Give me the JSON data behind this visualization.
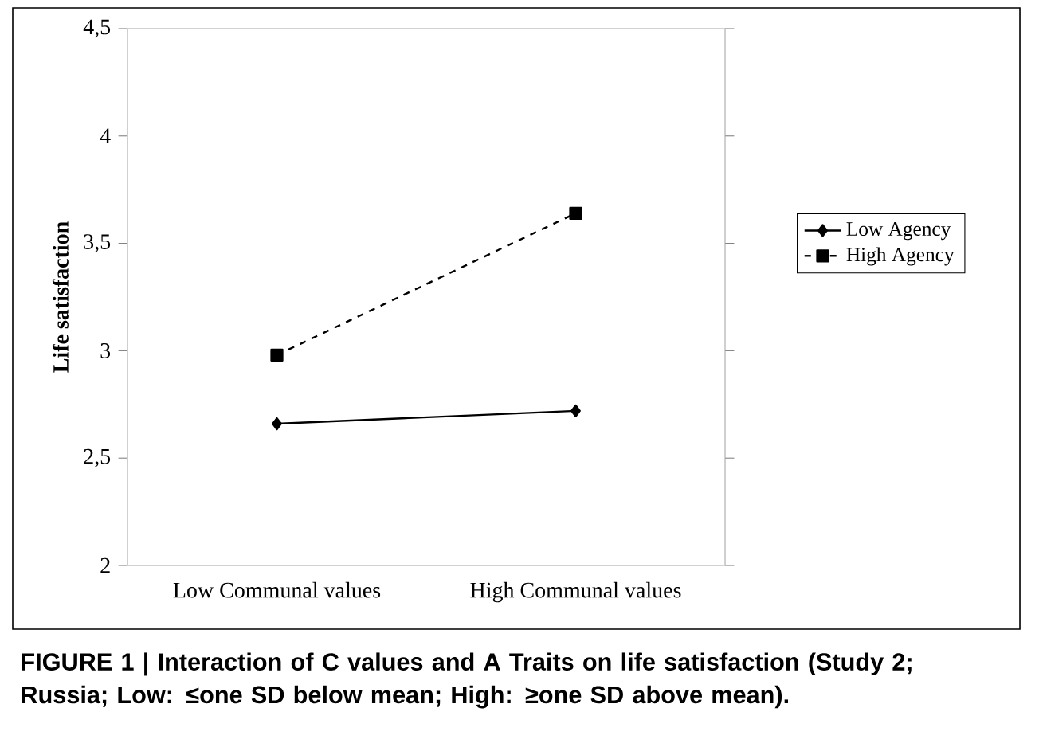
{
  "chart_data": {
    "type": "line",
    "ylabel": "Life satisfaction",
    "categories": [
      "Low Communal values",
      "High Communal values"
    ],
    "series": [
      {
        "name": "Low Agency",
        "color": "#000000",
        "values": [
          2.66,
          2.72
        ],
        "marker": "diamond",
        "line_style": "solid"
      },
      {
        "name": "High Agency",
        "color": "#000000",
        "values": [
          2.98,
          3.64
        ],
        "marker": "square",
        "line_style": "dashed"
      }
    ],
    "ylim": [
      2,
      4.5
    ],
    "yticks": [
      {
        "value": 2,
        "label": "2"
      },
      {
        "value": 2.5,
        "label": "2,5"
      },
      {
        "value": 3,
        "label": "3"
      },
      {
        "value": 3.5,
        "label": "3,5"
      },
      {
        "value": 4,
        "label": "4"
      },
      {
        "value": 4.5,
        "label": "4,5"
      }
    ],
    "grid": false,
    "legend": "right",
    "annotations": [
      "FIGURE 1 | Interaction of C values and A Traits on life satisfaction (Study 2; Russia; Low: ≤one SD below mean; High: ≥one SD above mean)."
    ]
  }
}
